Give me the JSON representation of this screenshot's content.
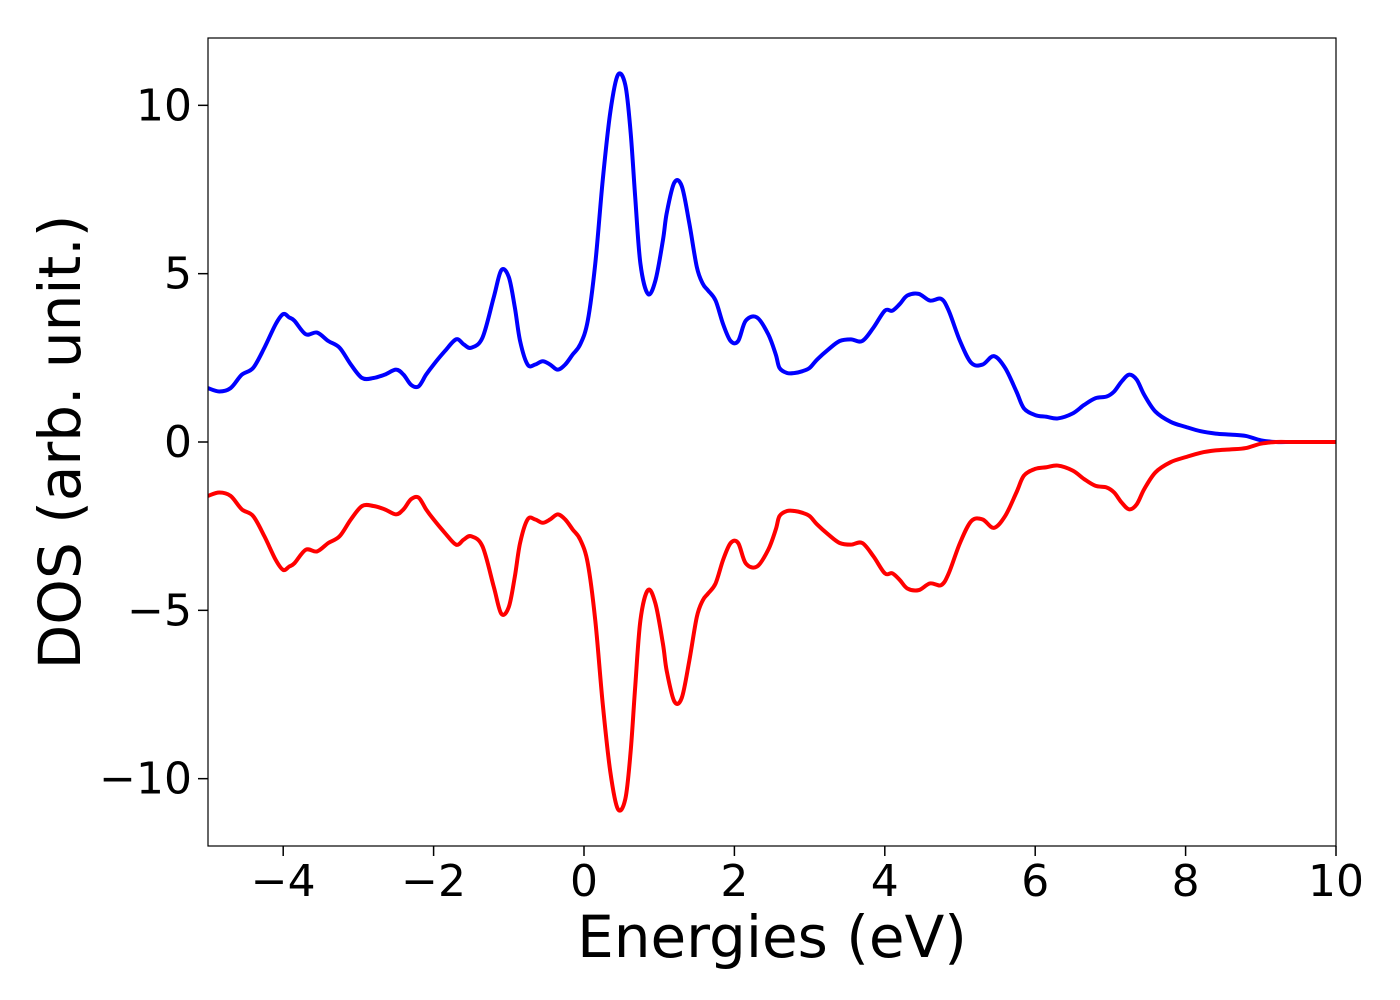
{
  "chart_data": {
    "type": "line",
    "title": "",
    "xlabel": "Energies (eV)",
    "ylabel": "DOS (arb. unit.)",
    "xlim": [
      -5,
      10
    ],
    "ylim": [
      -12,
      12
    ],
    "xticks": [
      -4,
      -2,
      0,
      2,
      4,
      6,
      8,
      10
    ],
    "xtick_labels": [
      "−4",
      "−2",
      "0",
      "2",
      "4",
      "6",
      "8",
      "10"
    ],
    "yticks": [
      -10,
      -5,
      0,
      5,
      10
    ],
    "ytick_labels": [
      "−10",
      "−5",
      "0",
      "5",
      "10"
    ],
    "grid": false,
    "legend": "none",
    "series": [
      {
        "color": "#0000ff",
        "x": [
          -5.0,
          -4.85,
          -4.7,
          -4.55,
          -4.4,
          -4.25,
          -4.1,
          -4.0,
          -3.92,
          -3.85,
          -3.7,
          -3.55,
          -3.4,
          -3.25,
          -3.1,
          -2.95,
          -2.8,
          -2.65,
          -2.5,
          -2.4,
          -2.3,
          -2.2,
          -2.1,
          -2.0,
          -1.85,
          -1.7,
          -1.6,
          -1.5,
          -1.35,
          -1.2,
          -1.1,
          -1.0,
          -0.92,
          -0.85,
          -0.75,
          -0.65,
          -0.55,
          -0.45,
          -0.35,
          -0.25,
          -0.15,
          -0.05,
          0.05,
          0.15,
          0.25,
          0.35,
          0.45,
          0.55,
          0.62,
          0.68,
          0.75,
          0.85,
          0.95,
          1.05,
          1.1,
          1.2,
          1.3,
          1.4,
          1.5,
          1.58,
          1.65,
          1.75,
          1.85,
          1.95,
          2.05,
          2.15,
          2.3,
          2.45,
          2.55,
          2.6,
          2.7,
          2.8,
          2.9,
          3.0,
          3.1,
          3.25,
          3.4,
          3.55,
          3.7,
          3.85,
          4.0,
          4.1,
          4.2,
          4.3,
          4.45,
          4.6,
          4.75,
          4.85,
          5.0,
          5.15,
          5.3,
          5.45,
          5.6,
          5.75,
          5.85,
          6.0,
          6.15,
          6.3,
          6.5,
          6.65,
          6.8,
          6.95,
          7.05,
          7.15,
          7.25,
          7.35,
          7.45,
          7.6,
          7.8,
          8.0,
          8.2,
          8.4,
          8.6,
          8.8,
          9.0,
          9.2,
          9.4,
          9.6,
          9.8,
          10.0
        ],
        "y": [
          1.6,
          1.5,
          1.6,
          2.0,
          2.2,
          2.8,
          3.5,
          3.8,
          3.7,
          3.6,
          3.2,
          3.25,
          3.0,
          2.8,
          2.3,
          1.9,
          1.9,
          2.0,
          2.15,
          2.0,
          1.7,
          1.65,
          2.0,
          2.3,
          2.7,
          3.05,
          2.9,
          2.8,
          3.1,
          4.3,
          5.1,
          4.9,
          4.0,
          3.0,
          2.3,
          2.3,
          2.4,
          2.3,
          2.15,
          2.3,
          2.6,
          2.9,
          3.6,
          5.3,
          7.8,
          9.8,
          10.9,
          10.6,
          9.2,
          7.3,
          5.3,
          4.4,
          4.8,
          6.0,
          6.8,
          7.7,
          7.6,
          6.5,
          5.2,
          4.7,
          4.5,
          4.2,
          3.5,
          3.0,
          3.0,
          3.6,
          3.7,
          3.2,
          2.6,
          2.2,
          2.05,
          2.05,
          2.1,
          2.2,
          2.45,
          2.75,
          3.0,
          3.05,
          3.0,
          3.4,
          3.9,
          3.9,
          4.1,
          4.35,
          4.4,
          4.2,
          4.25,
          3.9,
          3.0,
          2.35,
          2.3,
          2.55,
          2.2,
          1.5,
          1.0,
          0.8,
          0.75,
          0.7,
          0.85,
          1.1,
          1.3,
          1.35,
          1.5,
          1.8,
          2.0,
          1.85,
          1.4,
          0.9,
          0.6,
          0.45,
          0.32,
          0.25,
          0.22,
          0.18,
          0.05,
          0.0,
          0.0,
          0.0,
          0.0,
          0.0
        ]
      },
      {
        "color": "#ff0000",
        "x": [
          -5.0,
          -4.85,
          -4.7,
          -4.55,
          -4.4,
          -4.25,
          -4.1,
          -4.0,
          -3.92,
          -3.85,
          -3.7,
          -3.55,
          -3.4,
          -3.25,
          -3.1,
          -2.95,
          -2.8,
          -2.65,
          -2.5,
          -2.4,
          -2.3,
          -2.2,
          -2.1,
          -2.0,
          -1.85,
          -1.7,
          -1.6,
          -1.5,
          -1.35,
          -1.2,
          -1.1,
          -1.0,
          -0.92,
          -0.85,
          -0.75,
          -0.65,
          -0.55,
          -0.45,
          -0.35,
          -0.25,
          -0.15,
          -0.05,
          0.05,
          0.15,
          0.25,
          0.35,
          0.45,
          0.55,
          0.62,
          0.68,
          0.75,
          0.85,
          0.95,
          1.05,
          1.1,
          1.2,
          1.3,
          1.4,
          1.5,
          1.58,
          1.65,
          1.75,
          1.85,
          1.95,
          2.05,
          2.15,
          2.3,
          2.45,
          2.55,
          2.6,
          2.7,
          2.8,
          2.9,
          3.0,
          3.1,
          3.25,
          3.4,
          3.55,
          3.7,
          3.85,
          4.0,
          4.1,
          4.2,
          4.3,
          4.45,
          4.6,
          4.75,
          4.85,
          5.0,
          5.15,
          5.3,
          5.45,
          5.6,
          5.75,
          5.85,
          6.0,
          6.15,
          6.3,
          6.5,
          6.65,
          6.8,
          6.95,
          7.05,
          7.15,
          7.25,
          7.35,
          7.45,
          7.6,
          7.8,
          8.0,
          8.2,
          8.4,
          8.6,
          8.8,
          9.0,
          9.2,
          9.4,
          9.6,
          9.8,
          10.0
        ],
        "y": [
          -1.6,
          -1.5,
          -1.6,
          -2.0,
          -2.2,
          -2.8,
          -3.5,
          -3.8,
          -3.7,
          -3.6,
          -3.2,
          -3.25,
          -3.0,
          -2.8,
          -2.3,
          -1.9,
          -1.9,
          -2.0,
          -2.15,
          -2.0,
          -1.7,
          -1.65,
          -2.0,
          -2.3,
          -2.7,
          -3.05,
          -2.9,
          -2.8,
          -3.1,
          -4.3,
          -5.1,
          -4.9,
          -4.0,
          -3.0,
          -2.3,
          -2.3,
          -2.4,
          -2.3,
          -2.15,
          -2.3,
          -2.6,
          -2.9,
          -3.6,
          -5.3,
          -7.8,
          -9.8,
          -10.9,
          -10.6,
          -9.2,
          -7.3,
          -5.3,
          -4.4,
          -4.8,
          -6.0,
          -6.8,
          -7.7,
          -7.6,
          -6.5,
          -5.2,
          -4.7,
          -4.5,
          -4.2,
          -3.5,
          -3.0,
          -3.0,
          -3.6,
          -3.7,
          -3.2,
          -2.6,
          -2.2,
          -2.05,
          -2.05,
          -2.1,
          -2.2,
          -2.45,
          -2.75,
          -3.0,
          -3.05,
          -3.0,
          -3.4,
          -3.9,
          -3.9,
          -4.1,
          -4.35,
          -4.4,
          -4.2,
          -4.25,
          -3.9,
          -3.0,
          -2.35,
          -2.3,
          -2.55,
          -2.2,
          -1.5,
          -1.0,
          -0.8,
          -0.75,
          -0.7,
          -0.85,
          -1.1,
          -1.3,
          -1.35,
          -1.5,
          -1.8,
          -2.0,
          -1.85,
          -1.4,
          -0.9,
          -0.6,
          -0.45,
          -0.32,
          -0.25,
          -0.22,
          -0.18,
          -0.05,
          0.0,
          0.0,
          0.0,
          0.0,
          0.0
        ]
      }
    ]
  }
}
